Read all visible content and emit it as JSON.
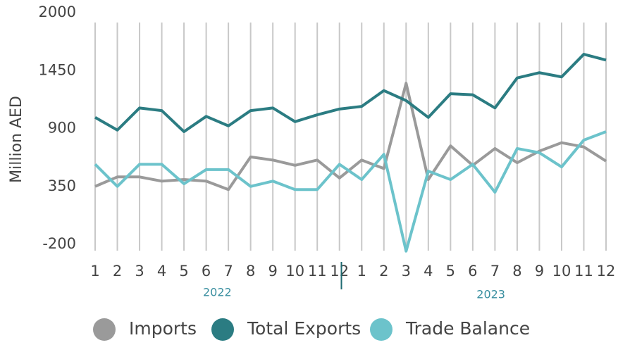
{
  "chart_data": {
    "type": "line",
    "y_label": "Million AED",
    "categories": [
      "1",
      "2",
      "3",
      "4",
      "5",
      "6",
      "7",
      "8",
      "9",
      "10",
      "11",
      "12",
      "1",
      "2",
      "3",
      "4",
      "5",
      "6",
      "7",
      "8",
      "9",
      "10",
      "11",
      "12"
    ],
    "x_groups": [
      "2022",
      "2023"
    ],
    "series": [
      {
        "name": "Imports",
        "color": "#9a9a9a",
        "values": [
          350,
          440,
          440,
          400,
          415,
          400,
          320,
          630,
          600,
          550,
          600,
          430,
          600,
          520,
          1330,
          415,
          735,
          550,
          710,
          575,
          685,
          765,
          725,
          590
        ]
      },
      {
        "name": "Total Exports",
        "color": "#2b7c82",
        "values": [
          1005,
          885,
          1095,
          1070,
          870,
          1015,
          925,
          1070,
          1095,
          965,
          1030,
          1085,
          1110,
          1260,
          1165,
          1005,
          1230,
          1220,
          1095,
          1380,
          1430,
          1390,
          1605,
          1550
        ]
      },
      {
        "name": "Trade Balance",
        "color": "#6cc3cb",
        "values": [
          560,
          350,
          560,
          560,
          375,
          510,
          510,
          350,
          400,
          320,
          320,
          560,
          415,
          655,
          -265,
          495,
          415,
          560,
          295,
          710,
          670,
          535,
          790,
          870
        ]
      }
    ],
    "ylim": [
      -200,
      2000
    ],
    "yticks": [
      -200,
      350,
      900,
      1450,
      2000
    ],
    "grid": "vertical",
    "legend": "bottom"
  }
}
